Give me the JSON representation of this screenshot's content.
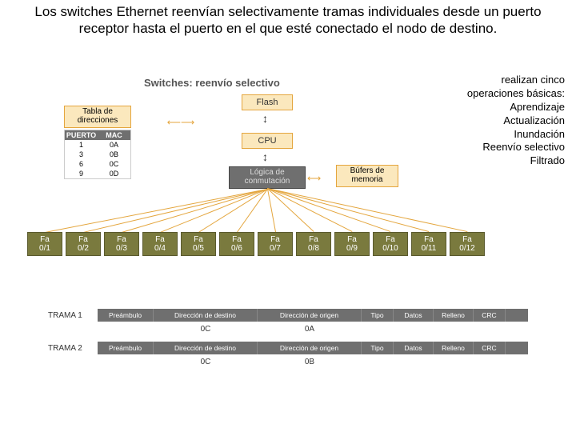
{
  "title": "Los switches Ethernet reenvían selectivamente tramas individuales desde un puerto receptor hasta el puerto en el que esté conectado el nodo de destino.",
  "operations": {
    "intro1": "realizan cinco",
    "intro2": "operaciones básicas:",
    "items": [
      "Aprendizaje",
      "Actualización",
      "Inundación",
      "Reenvío selectivo",
      "Filtrado"
    ]
  },
  "diagram": {
    "subtitle": "Switches: reenvío selectivo",
    "flash": "Flash",
    "cpu": "CPU",
    "tabla_l1": "Tabla de",
    "tabla_l2": "direcciones",
    "logica_l1": "Lógica de",
    "logica_l2": "conmutación",
    "bufers_l1": "Búfers de",
    "bufers_l2": "memoria",
    "colors": {
      "box_bg": "#fbe8bd",
      "box_border": "#e4a63e",
      "dark_bg": "#6f6f6f",
      "port_bg": "#7a7a3e"
    },
    "mac": {
      "h1": "PUERTO",
      "h2": "MAC",
      "rows": [
        {
          "p": "1",
          "m": "0A"
        },
        {
          "p": "3",
          "m": "0B"
        },
        {
          "p": "6",
          "m": "0C"
        },
        {
          "p": "9",
          "m": "0D"
        }
      ]
    },
    "ports": [
      {
        "l1": "Fa",
        "l2": "0/1"
      },
      {
        "l1": "Fa",
        "l2": "0/2"
      },
      {
        "l1": "Fa",
        "l2": "0/3"
      },
      {
        "l1": "Fa",
        "l2": "0/4"
      },
      {
        "l1": "Fa",
        "l2": "0/5"
      },
      {
        "l1": "Fa",
        "l2": "0/6"
      },
      {
        "l1": "Fa",
        "l2": "0/7"
      },
      {
        "l1": "Fa",
        "l2": "0/8"
      },
      {
        "l1": "Fa",
        "l2": "0/9"
      },
      {
        "l1": "Fa",
        "l2": "0/10"
      },
      {
        "l1": "Fa",
        "l2": "0/11"
      },
      {
        "l1": "Fa",
        "l2": "0/12"
      }
    ]
  },
  "frames": {
    "segments": [
      "Preámbulo",
      "Dirección de destino",
      "Dirección de origen",
      "Tipo",
      "Datos",
      "Relleno",
      "CRC"
    ],
    "seg_widths": [
      70,
      130,
      130,
      40,
      50,
      50,
      40
    ],
    "rows": [
      {
        "label": "TRAMA 1",
        "dest": "0C",
        "src": "0A"
      },
      {
        "label": "TRAMA 2",
        "dest": "0C",
        "src": "0B"
      }
    ]
  }
}
